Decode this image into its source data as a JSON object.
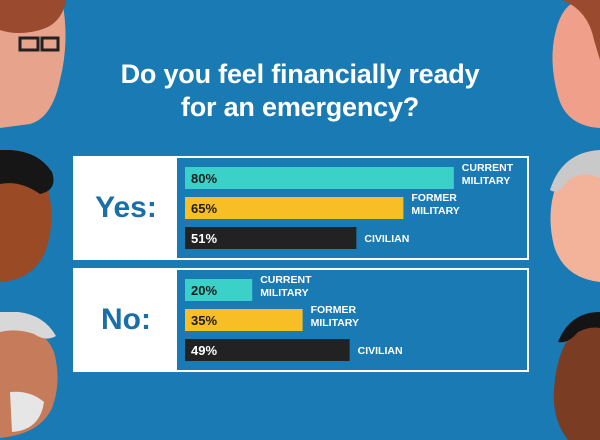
{
  "title_line1": "Do you feel financially ready",
  "title_line2": "for an emergency?",
  "colors": {
    "background": "#1a7ab3",
    "current_military": "#3cd1c8",
    "former_military": "#f7bf25",
    "civilian": "#222222",
    "panel_label": "#1a6fa6"
  },
  "chart_data": [
    {
      "type": "bar",
      "orientation": "horizontal",
      "title": "Yes:",
      "categories": [
        "CURRENT MILITARY",
        "FORMER MILITARY",
        "CIVILIAN"
      ],
      "values": [
        80,
        65,
        51
      ],
      "value_labels": [
        "80%",
        "65%",
        "51%"
      ],
      "unit": "%",
      "xlim": [
        0,
        100
      ]
    },
    {
      "type": "bar",
      "orientation": "horizontal",
      "title": "No:",
      "categories": [
        "CURRENT MILITARY",
        "FORMER MILITARY",
        "CIVILIAN"
      ],
      "values": [
        20,
        35,
        49
      ],
      "value_labels": [
        "20%",
        "35%",
        "49%"
      ],
      "unit": "%",
      "xlim": [
        0,
        100
      ]
    }
  ]
}
